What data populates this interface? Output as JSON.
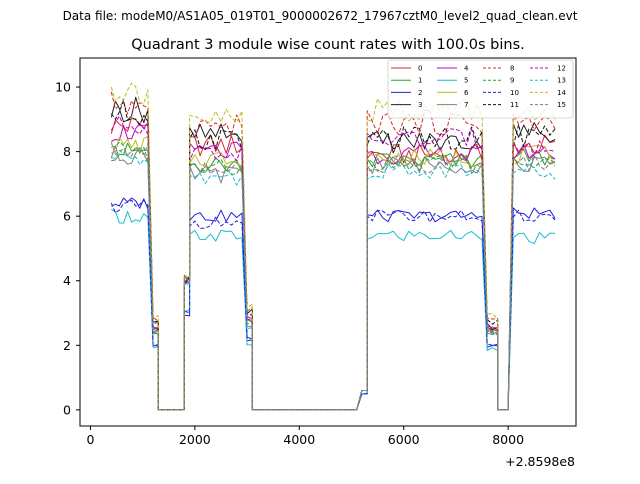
{
  "figure": {
    "suptitle": "Data file: modeM0/AS1A05_019T01_9000002672_17967cztM0_level2_quad_clean.evt"
  },
  "chart_data": {
    "type": "line",
    "title": "Quadrant 3 module wise count rates with 100.0s bins.",
    "xlabel": "",
    "ylabel": "",
    "x_offset_label": "+2.8598e8",
    "xlim": [
      -200,
      9300
    ],
    "ylim": [
      -0.5,
      10.9
    ],
    "xticks": [
      0,
      2000,
      4000,
      6000,
      8000
    ],
    "yticks": [
      0,
      2,
      4,
      6,
      8,
      10
    ],
    "grid": false,
    "legend_location": "top-right",
    "bins": [
      [
        400,
        1100,
        10
      ],
      [
        1200,
        1300,
        2
      ],
      [
        1300,
        1800,
        6
      ],
      [
        1800,
        1900,
        2
      ],
      [
        1900,
        2900,
        11
      ],
      [
        3000,
        3100,
        2
      ],
      [
        3100,
        3200,
        2
      ],
      [
        3200,
        5100,
        20
      ],
      [
        5200,
        5300,
        2
      ],
      [
        5300,
        7500,
        23
      ],
      [
        7600,
        7800,
        3
      ],
      [
        7800,
        8000,
        3
      ],
      [
        8100,
        8900,
        9
      ]
    ],
    "series": [
      {
        "name": "0",
        "color": "#d62728",
        "linestyle": "solid",
        "levels": [
          8.8,
          2.5,
          0,
          4,
          8.2,
          2.8,
          0,
          0,
          0.6,
          7.9,
          2.5,
          0,
          8.2
        ],
        "amp": 0.35
      },
      {
        "name": "1",
        "color": "#2ca02c",
        "linestyle": "solid",
        "levels": [
          8.0,
          2.5,
          0,
          4,
          7.6,
          2.8,
          0,
          0,
          0.6,
          7.7,
          2.5,
          0,
          7.8
        ],
        "amp": 0.3
      },
      {
        "name": "2",
        "color": "#1f1fe0",
        "linestyle": "solid",
        "levels": [
          6.4,
          2.0,
          0,
          3,
          6.0,
          2.2,
          0,
          0,
          0.5,
          6.0,
          2.0,
          0,
          6.1
        ],
        "amp": 0.25
      },
      {
        "name": "3",
        "color": "#222222",
        "linestyle": "solid",
        "levels": [
          9.3,
          2.7,
          0,
          4,
          8.5,
          3.0,
          0,
          0,
          0.6,
          8.3,
          2.6,
          0,
          8.6
        ],
        "amp": 0.35
      },
      {
        "name": "4",
        "color": "#c000c0",
        "linestyle": "solid",
        "levels": [
          8.6,
          2.5,
          0,
          4,
          8.0,
          2.8,
          0,
          0,
          0.6,
          7.9,
          2.5,
          0,
          8.0
        ],
        "amp": 0.3
      },
      {
        "name": "5",
        "color": "#17becf",
        "linestyle": "solid",
        "levels": [
          6.0,
          1.9,
          0,
          3,
          5.4,
          2.0,
          0,
          0,
          0.5,
          5.4,
          1.9,
          0,
          5.3
        ],
        "amp": 0.3
      },
      {
        "name": "6",
        "color": "#bcbd22",
        "linestyle": "solid",
        "levels": [
          8.2,
          2.4,
          0,
          4,
          7.8,
          2.8,
          0,
          0,
          0.6,
          7.8,
          2.5,
          0,
          7.9
        ],
        "amp": 0.3
      },
      {
        "name": "7",
        "color": "#7f7f7f",
        "linestyle": "solid",
        "levels": [
          7.9,
          2.4,
          0,
          4,
          7.3,
          2.6,
          0,
          0,
          0.6,
          7.6,
          2.4,
          0,
          7.6
        ],
        "amp": 0.3
      },
      {
        "name": "8",
        "color": "#d62728",
        "linestyle": "dashed",
        "levels": [
          9.5,
          2.8,
          0,
          4,
          8.8,
          3.1,
          0,
          0,
          0.6,
          8.9,
          2.8,
          0,
          8.9
        ],
        "amp": 0.35
      },
      {
        "name": "9",
        "color": "#2ca02c",
        "linestyle": "dashed",
        "levels": [
          8.0,
          2.4,
          0,
          4,
          7.5,
          2.7,
          0,
          0,
          0.6,
          7.6,
          2.4,
          0,
          7.6
        ],
        "amp": 0.3
      },
      {
        "name": "10",
        "color": "#1f1fe0",
        "linestyle": "dashed",
        "levels": [
          6.3,
          2.0,
          0,
          3,
          5.8,
          2.1,
          0,
          0,
          0.5,
          6.0,
          2.0,
          0,
          6.0
        ],
        "amp": 0.25
      },
      {
        "name": "11",
        "color": "#111111",
        "linestyle": "dashed",
        "levels": [
          9.2,
          2.7,
          0,
          4,
          8.4,
          3.0,
          0,
          0,
          0.6,
          8.4,
          2.7,
          0,
          8.5
        ],
        "amp": 0.35
      },
      {
        "name": "12",
        "color": "#c000c0",
        "linestyle": "dashed",
        "levels": [
          8.8,
          2.6,
          0,
          4,
          8.0,
          2.8,
          0,
          0,
          0.6,
          8.4,
          2.6,
          0,
          8.1
        ],
        "amp": 0.3
      },
      {
        "name": "13",
        "color": "#17becf",
        "linestyle": "dashed",
        "levels": [
          7.8,
          2.4,
          0,
          4,
          7.2,
          2.6,
          0,
          0,
          0.6,
          7.4,
          2.4,
          0,
          7.4
        ],
        "amp": 0.3
      },
      {
        "name": "14",
        "color": "#bcbd22",
        "linestyle": "dashed",
        "levels": [
          9.9,
          2.9,
          0,
          4,
          9.0,
          3.2,
          0,
          0,
          0.6,
          9.3,
          2.9,
          0,
          9.0
        ],
        "amp": 0.35
      },
      {
        "name": "15",
        "color": "#7f7f7f",
        "linestyle": "dashed",
        "levels": [
          8.0,
          2.4,
          0,
          4,
          7.5,
          2.6,
          0,
          0,
          0.6,
          7.6,
          2.4,
          0,
          7.7
        ],
        "amp": 0.3
      }
    ]
  }
}
